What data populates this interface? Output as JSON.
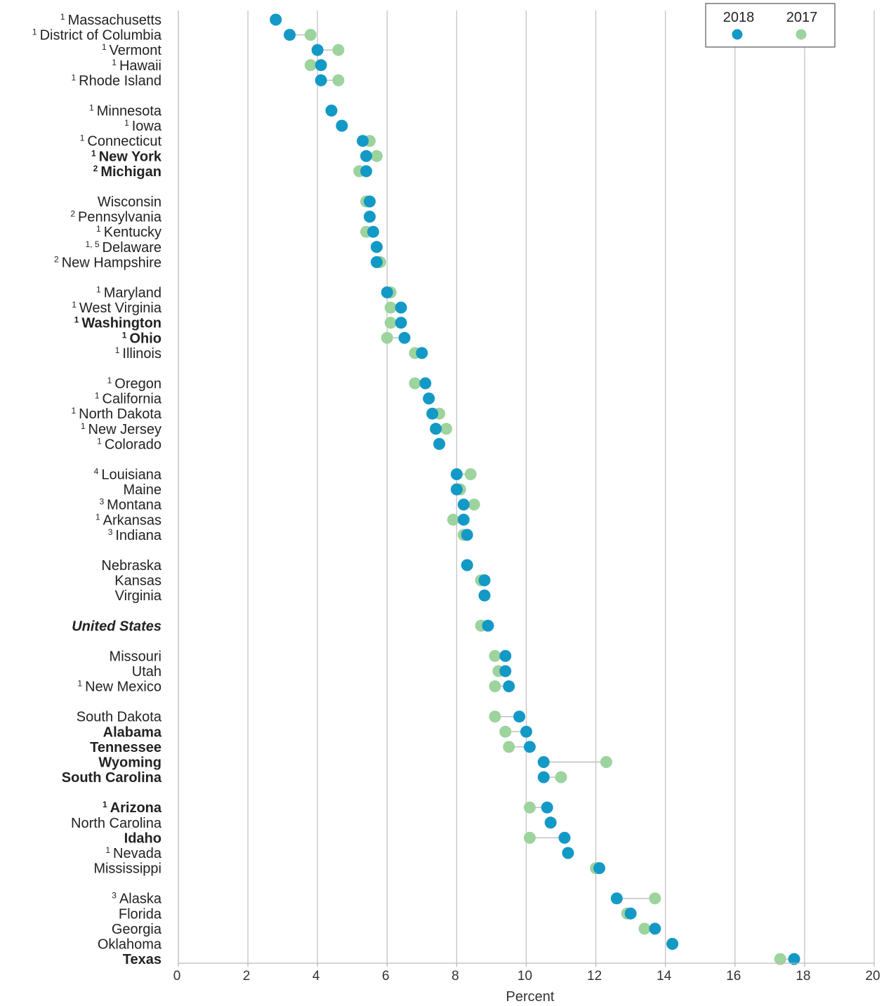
{
  "chart_data": {
    "type": "scatter",
    "subtype": "dumbbell",
    "xlabel": "Percent",
    "xlim": [
      0,
      20
    ],
    "xticks": [
      0,
      2,
      4,
      6,
      8,
      10,
      12,
      14,
      16,
      18,
      20
    ],
    "grid": "vertical",
    "legend_position": "top-right",
    "series": [
      {
        "name": "2018",
        "color": "#1399c6"
      },
      {
        "name": "2017",
        "color": "#9dd39c"
      }
    ],
    "connector_color": "#c0c0c0",
    "groups": [
      [
        {
          "label": "Massachusetts",
          "note": "1",
          "style": "normal",
          "v2018": 2.8,
          "v2017": 2.8
        },
        {
          "label": "District of Columbia",
          "note": "1",
          "style": "normal",
          "v2018": 3.2,
          "v2017": 3.8
        },
        {
          "label": "Vermont",
          "note": "1",
          "style": "normal",
          "v2018": 4.0,
          "v2017": 4.6
        },
        {
          "label": "Hawaii",
          "note": "1",
          "style": "normal",
          "v2018": 4.1,
          "v2017": 3.8
        },
        {
          "label": "Rhode Island",
          "note": "1",
          "style": "normal",
          "v2018": 4.1,
          "v2017": 4.6
        }
      ],
      [
        {
          "label": "Minnesota",
          "note": "1",
          "style": "normal",
          "v2018": 4.4,
          "v2017": 4.4
        },
        {
          "label": "Iowa",
          "note": "1",
          "style": "normal",
          "v2018": 4.7,
          "v2017": 4.7
        },
        {
          "label": "Connecticut",
          "note": "1",
          "style": "normal",
          "v2018": 5.3,
          "v2017": 5.5
        },
        {
          "label": "New York",
          "note": "1",
          "style": "bold",
          "v2018": 5.4,
          "v2017": 5.7
        },
        {
          "label": "Michigan",
          "note": "2",
          "style": "bold",
          "v2018": 5.4,
          "v2017": 5.2
        }
      ],
      [
        {
          "label": "Wisconsin",
          "note": "",
          "style": "normal",
          "v2018": 5.5,
          "v2017": 5.4
        },
        {
          "label": "Pennsylvania",
          "note": "2",
          "style": "normal",
          "v2018": 5.5,
          "v2017": 5.5
        },
        {
          "label": "Kentucky",
          "note": "1",
          "style": "normal",
          "v2018": 5.6,
          "v2017": 5.4
        },
        {
          "label": "Delaware",
          "note": "1, 5",
          "style": "normal",
          "v2018": 5.7,
          "v2017": 5.7
        },
        {
          "label": "New Hampshire",
          "note": "2",
          "style": "normal",
          "v2018": 5.7,
          "v2017": 5.8
        }
      ],
      [
        {
          "label": "Maryland",
          "note": "1",
          "style": "normal",
          "v2018": 6.0,
          "v2017": 6.1
        },
        {
          "label": "West Virginia",
          "note": "1",
          "style": "normal",
          "v2018": 6.4,
          "v2017": 6.1
        },
        {
          "label": "Washington",
          "note": "1",
          "style": "bold",
          "v2018": 6.4,
          "v2017": 6.1
        },
        {
          "label": "Ohio",
          "note": "1",
          "style": "bold",
          "v2018": 6.5,
          "v2017": 6.0
        },
        {
          "label": "Illinois",
          "note": "1",
          "style": "normal",
          "v2018": 7.0,
          "v2017": 6.8
        }
      ],
      [
        {
          "label": "Oregon",
          "note": "1",
          "style": "normal",
          "v2018": 7.1,
          "v2017": 6.8
        },
        {
          "label": "California",
          "note": "1",
          "style": "normal",
          "v2018": 7.2,
          "v2017": 7.2
        },
        {
          "label": "North Dakota",
          "note": "1",
          "style": "normal",
          "v2018": 7.3,
          "v2017": 7.5
        },
        {
          "label": "New Jersey",
          "note": "1",
          "style": "normal",
          "v2018": 7.4,
          "v2017": 7.7
        },
        {
          "label": "Colorado",
          "note": "1",
          "style": "normal",
          "v2018": 7.5,
          "v2017": 7.5
        }
      ],
      [
        {
          "label": "Louisiana",
          "note": "4",
          "style": "normal",
          "v2018": 8.0,
          "v2017": 8.4
        },
        {
          "label": "Maine",
          "note": "",
          "style": "normal",
          "v2018": 8.0,
          "v2017": 8.1
        },
        {
          "label": "Montana",
          "note": "3",
          "style": "normal",
          "v2018": 8.2,
          "v2017": 8.5
        },
        {
          "label": "Arkansas",
          "note": "1",
          "style": "normal",
          "v2018": 8.2,
          "v2017": 7.9
        },
        {
          "label": "Indiana",
          "note": "3",
          "style": "normal",
          "v2018": 8.3,
          "v2017": 8.2
        }
      ],
      [
        {
          "label": "Nebraska",
          "note": "",
          "style": "normal",
          "v2018": 8.3,
          "v2017": 8.3
        },
        {
          "label": "Kansas",
          "note": "",
          "style": "normal",
          "v2018": 8.8,
          "v2017": 8.7
        },
        {
          "label": "Virginia",
          "note": "",
          "style": "normal",
          "v2018": 8.8,
          "v2017": 8.8
        }
      ],
      [
        {
          "label": "United States",
          "note": "",
          "style": "us",
          "v2018": 8.9,
          "v2017": 8.7
        }
      ],
      [
        {
          "label": "Missouri",
          "note": "",
          "style": "normal",
          "v2018": 9.4,
          "v2017": 9.1
        },
        {
          "label": "Utah",
          "note": "",
          "style": "normal",
          "v2018": 9.4,
          "v2017": 9.2
        },
        {
          "label": "New Mexico",
          "note": "1",
          "style": "normal",
          "v2018": 9.5,
          "v2017": 9.1
        }
      ],
      [
        {
          "label": "South Dakota",
          "note": "",
          "style": "normal",
          "v2018": 9.8,
          "v2017": 9.1
        },
        {
          "label": "Alabama",
          "note": "",
          "style": "bold",
          "v2018": 10.0,
          "v2017": 9.4
        },
        {
          "label": "Tennessee",
          "note": "",
          "style": "bold",
          "v2018": 10.1,
          "v2017": 9.5
        },
        {
          "label": "Wyoming",
          "note": "",
          "style": "bold",
          "v2018": 10.5,
          "v2017": 12.3
        },
        {
          "label": "South Carolina",
          "note": "",
          "style": "bold",
          "v2018": 10.5,
          "v2017": 11.0
        }
      ],
      [
        {
          "label": "Arizona",
          "note": "1",
          "style": "bold",
          "v2018": 10.6,
          "v2017": 10.1
        },
        {
          "label": "North Carolina",
          "note": "",
          "style": "normal",
          "v2018": 10.7,
          "v2017": 10.7
        },
        {
          "label": "Idaho",
          "note": "",
          "style": "bold",
          "v2018": 11.1,
          "v2017": 10.1
        },
        {
          "label": "Nevada",
          "note": "1",
          "style": "normal",
          "v2018": 11.2,
          "v2017": 11.2
        },
        {
          "label": "Mississippi",
          "note": "",
          "style": "normal",
          "v2018": 12.1,
          "v2017": 12.0
        }
      ],
      [
        {
          "label": "Alaska",
          "note": "3",
          "style": "normal",
          "v2018": 12.6,
          "v2017": 13.7
        },
        {
          "label": "Florida",
          "note": "",
          "style": "normal",
          "v2018": 13.0,
          "v2017": 12.9
        },
        {
          "label": "Georgia",
          "note": "",
          "style": "normal",
          "v2018": 13.7,
          "v2017": 13.4
        },
        {
          "label": "Oklahoma",
          "note": "",
          "style": "normal",
          "v2018": 14.2,
          "v2017": 14.2
        },
        {
          "label": "Texas",
          "note": "",
          "style": "bold",
          "v2018": 17.7,
          "v2017": 17.3
        }
      ]
    ]
  }
}
